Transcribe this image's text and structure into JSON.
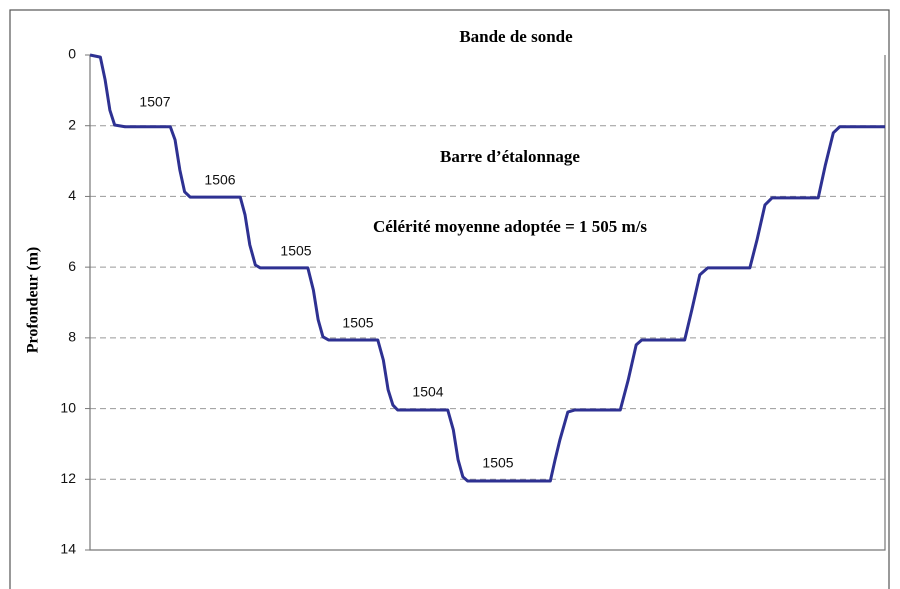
{
  "chart_data": {
    "type": "line",
    "title": "Bande de sonde",
    "y_label": "Profondeur (m)",
    "annotations": [
      "Barre d’étalonnage",
      "Célérité moyenne adoptée = 1 505 m/s"
    ],
    "step_labels": [
      1507,
      1506,
      1505,
      1505,
      1504,
      1505
    ],
    "ylim": [
      0,
      14
    ],
    "yticks": [
      0,
      2,
      4,
      6,
      8,
      10,
      12,
      14
    ],
    "y_inverted": true,
    "xlim": [
      0,
      100
    ],
    "grid": true,
    "series": [
      {
        "color": "#2e3192",
        "x": [
          0,
          1.3,
          1.9,
          2.5,
          3.1,
          4.4,
          10.1,
          10.7,
          11.3,
          11.9,
          12.6,
          18.9,
          19.5,
          20.1,
          20.8,
          21.4,
          27.4,
          28.1,
          28.7,
          29.3,
          30.0,
          36.2,
          36.9,
          37.5,
          38.1,
          38.7,
          45.0,
          45.7,
          46.3,
          46.9,
          47.5,
          57.9,
          58.5,
          59.1,
          60.1,
          61.0,
          66.7,
          67.7,
          68.7,
          69.4,
          74.8,
          75.7,
          76.7,
          77.7,
          83.0,
          83.9,
          84.9,
          85.8,
          91.6,
          92.5,
          93.5,
          94.3,
          100
        ],
        "values": [
          0,
          0.06,
          0.7,
          1.56,
          1.98,
          2.03,
          2.03,
          2.4,
          3.25,
          3.87,
          4.02,
          4.02,
          4.52,
          5.37,
          5.94,
          6.02,
          6.02,
          6.65,
          7.49,
          7.97,
          8.06,
          8.06,
          8.63,
          9.47,
          9.9,
          10.04,
          10.04,
          10.6,
          11.45,
          11.93,
          12.05,
          12.05,
          11.45,
          10.89,
          10.1,
          10.04,
          10.04,
          9.19,
          8.2,
          8.06,
          8.06,
          7.21,
          6.22,
          6.02,
          6.02,
          5.23,
          4.24,
          4.04,
          4.04,
          3.11,
          2.2,
          2.03,
          2.03
        ]
      }
    ]
  }
}
